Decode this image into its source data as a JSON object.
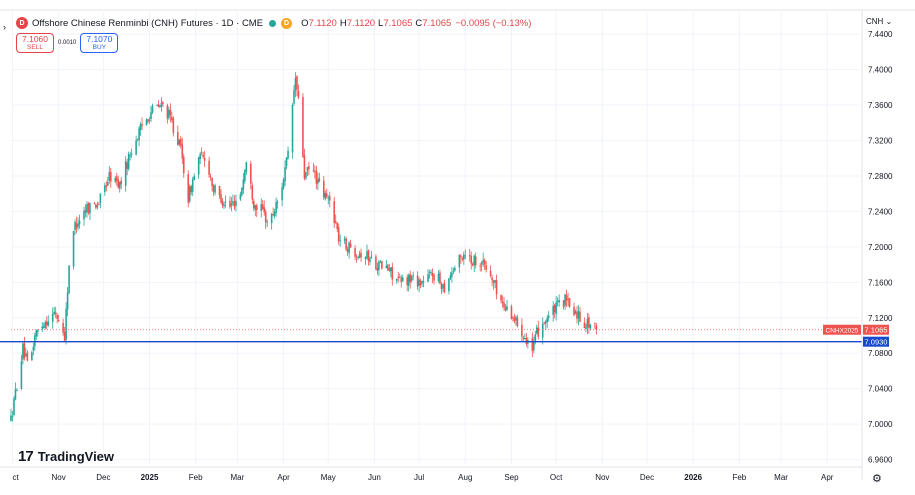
{
  "header": {
    "logo_letter": "D",
    "title": "Offshore Chinese Renminbi (CNH) Futures · 1D · CME",
    "data_badge": "D",
    "open_label": "O",
    "open_value": "7.1120",
    "high_label": "H",
    "high_value": "7.1120",
    "low_label": "L",
    "low_value": "7.1065",
    "close_label": "C",
    "close_value": "7.1065",
    "change": "−0.0095 (−0.13%)"
  },
  "trade": {
    "sell_price": "7.1060",
    "sell_label": "SELL",
    "spread": "0.0010",
    "buy_price": "7.1070",
    "buy_label": "BUY"
  },
  "currency_label": "CNH ⌄",
  "watermark_text": "TradingView",
  "colors": {
    "up": "#26a69a",
    "down": "#ef5350",
    "hline": "#1848cc",
    "last_price_tag": "#ef5350",
    "hline_tag": "#1848cc",
    "grid": "#f0f3fa"
  },
  "chart_data": {
    "type": "candlestick",
    "y_axis": {
      "range": [
        6.955,
        7.465
      ],
      "ticks": [
        7.44,
        7.4,
        7.36,
        7.32,
        7.28,
        7.24,
        7.2,
        7.16,
        7.12,
        7.08,
        7.04,
        7.0,
        6.96
      ],
      "tick_labels": [
        "7.4400",
        "7.4000",
        "7.3600",
        "7.3200",
        "7.2800",
        "7.2400",
        "7.2000",
        "7.1600",
        "7.1200",
        "7.0800",
        "7.0400",
        "7.0000",
        "6.9600"
      ]
    },
    "x_axis": {
      "range": [
        "2024-09-30",
        "2026-04-23"
      ],
      "ticks": [
        {
          "date": "2024-10-01",
          "label": "ct"
        },
        {
          "date": "2024-11-01",
          "label": "Nov"
        },
        {
          "date": "2024-12-01",
          "label": "Dec"
        },
        {
          "date": "2025-01-01",
          "label": "2025",
          "bold": true
        },
        {
          "date": "2025-02-01",
          "label": "Feb"
        },
        {
          "date": "2025-03-01",
          "label": "Mar"
        },
        {
          "date": "2025-04-01",
          "label": "Apr"
        },
        {
          "date": "2025-05-01",
          "label": "May"
        },
        {
          "date": "2025-06-01",
          "label": "Jun"
        },
        {
          "date": "2025-07-01",
          "label": "Jul"
        },
        {
          "date": "2025-08-01",
          "label": "Aug"
        },
        {
          "date": "2025-09-01",
          "label": "Sep"
        },
        {
          "date": "2025-10-01",
          "label": "Oct"
        },
        {
          "date": "2025-11-01",
          "label": "Nov"
        },
        {
          "date": "2025-12-01",
          "label": "Dec"
        },
        {
          "date": "2026-01-01",
          "label": "2026",
          "bold": true
        },
        {
          "date": "2026-02-01",
          "label": "Feb"
        },
        {
          "date": "2026-03-01",
          "label": "Mar"
        },
        {
          "date": "2026-04-01",
          "label": "Apr"
        }
      ]
    },
    "series_path": [
      [
        "2024-09-30",
        7.005
      ],
      [
        "2024-10-04",
        7.045
      ],
      [
        "2024-10-08",
        7.085
      ],
      [
        "2024-10-12",
        7.06
      ],
      [
        "2024-10-16",
        7.1
      ],
      [
        "2024-10-22",
        7.115
      ],
      [
        "2024-10-30",
        7.125
      ],
      [
        "2024-11-05",
        7.1
      ],
      [
        "2024-11-08",
        7.18
      ],
      [
        "2024-11-12",
        7.225
      ],
      [
        "2024-11-20",
        7.245
      ],
      [
        "2024-11-28",
        7.25
      ],
      [
        "2024-12-05",
        7.28
      ],
      [
        "2024-12-12",
        7.27
      ],
      [
        "2024-12-20",
        7.31
      ],
      [
        "2024-12-28",
        7.34
      ],
      [
        "2025-01-03",
        7.355
      ],
      [
        "2025-01-10",
        7.36
      ],
      [
        "2025-01-15",
        7.345
      ],
      [
        "2025-01-22",
        7.31
      ],
      [
        "2025-01-27",
        7.255
      ],
      [
        "2025-02-03",
        7.3
      ],
      [
        "2025-02-08",
        7.3
      ],
      [
        "2025-02-13",
        7.265
      ],
      [
        "2025-02-18",
        7.255
      ],
      [
        "2025-02-24",
        7.245
      ],
      [
        "2025-03-03",
        7.26
      ],
      [
        "2025-03-07",
        7.295
      ],
      [
        "2025-03-12",
        7.25
      ],
      [
        "2025-03-18",
        7.24
      ],
      [
        "2025-03-22",
        7.225
      ],
      [
        "2025-03-29",
        7.255
      ],
      [
        "2025-04-03",
        7.295
      ],
      [
        "2025-04-05",
        7.31
      ],
      [
        "2025-04-07",
        7.36
      ],
      [
        "2025-04-09",
        7.39
      ],
      [
        "2025-04-12",
        7.35
      ],
      [
        "2025-04-15",
        7.28
      ],
      [
        "2025-04-20",
        7.29
      ],
      [
        "2025-04-27",
        7.26
      ],
      [
        "2025-05-03",
        7.25
      ],
      [
        "2025-05-08",
        7.21
      ],
      [
        "2025-05-14",
        7.2
      ],
      [
        "2025-05-20",
        7.195
      ],
      [
        "2025-05-27",
        7.19
      ],
      [
        "2025-06-03",
        7.18
      ],
      [
        "2025-06-10",
        7.175
      ],
      [
        "2025-06-18",
        7.16
      ],
      [
        "2025-06-26",
        7.165
      ],
      [
        "2025-07-03",
        7.16
      ],
      [
        "2025-07-10",
        7.17
      ],
      [
        "2025-07-18",
        7.155
      ],
      [
        "2025-07-22",
        7.17
      ],
      [
        "2025-07-28",
        7.185
      ],
      [
        "2025-08-01",
        7.195
      ],
      [
        "2025-08-05",
        7.185
      ],
      [
        "2025-08-12",
        7.185
      ],
      [
        "2025-08-20",
        7.16
      ],
      [
        "2025-08-26",
        7.135
      ],
      [
        "2025-09-01",
        7.125
      ],
      [
        "2025-09-06",
        7.11
      ],
      [
        "2025-09-12",
        7.095
      ],
      [
        "2025-09-15",
        7.082
      ],
      [
        "2025-09-18",
        7.102
      ],
      [
        "2025-09-22",
        7.115
      ],
      [
        "2025-09-28",
        7.125
      ],
      [
        "2025-10-03",
        7.135
      ],
      [
        "2025-10-07",
        7.14
      ],
      [
        "2025-10-11",
        7.13
      ],
      [
        "2025-10-15",
        7.125
      ],
      [
        "2025-10-20",
        7.115
      ],
      [
        "2025-10-25",
        7.112
      ],
      [
        "2025-10-28",
        7.1065
      ]
    ],
    "horizontal_line": {
      "value": 7.093,
      "label": "7.0930"
    },
    "last_price": {
      "value": 7.1065,
      "label": "7.1065",
      "symbol_label": "CNHX2025"
    }
  }
}
